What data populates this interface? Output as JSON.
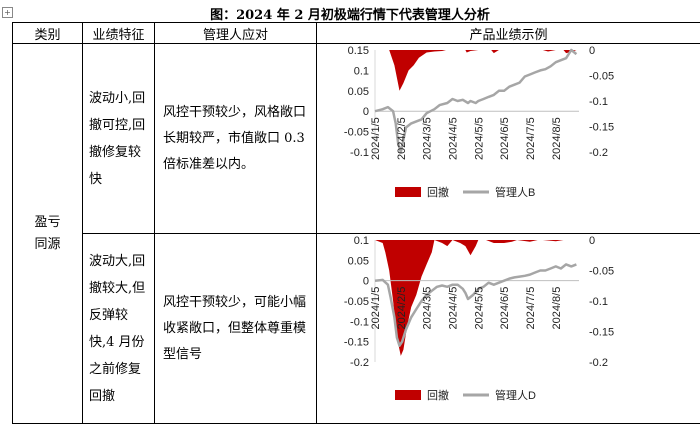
{
  "caption": "图：2024 年 2 月初极端行情下代表管理人分析",
  "headers": {
    "category": "类别",
    "feature": "业绩特征",
    "response": "管理人应对",
    "example": "产品业绩示例"
  },
  "category": "盈亏同源",
  "rows": [
    {
      "feature": "波动小,回撤可控,回撤修复较快",
      "response": "风控干预较少，风格敞口长期较严，市值敞口 0.3 倍标准差以内。"
    },
    {
      "feature": "波动大,回撤较大,但反弹较快,4 月份之前修复回撤",
      "response": "风控干预较少，可能小幅收紧敞口，但整体尊重模型信号"
    }
  ],
  "chart_data": [
    {
      "type": "area",
      "left_axis": {
        "ticks": [
          "0.15",
          "0.1",
          "0.05",
          "0",
          "-0.05",
          "-0.1"
        ],
        "ylim": [
          -0.1,
          0.15
        ]
      },
      "right_axis": {
        "ticks": [
          "0",
          "-0.05",
          "-0.1",
          "-0.15",
          "-0.2"
        ],
        "ylim": [
          -0.2,
          0
        ]
      },
      "x_ticks": [
        "2024/1/5",
        "2024/2/5",
        "2024/3/5",
        "2024/4/5",
        "2024/5/5",
        "2024/6/5",
        "2024/7/5",
        "2024/8/5"
      ],
      "x_month": [
        0,
        1,
        2,
        3,
        4,
        5,
        6,
        7
      ],
      "series": [
        {
          "name": "回撤",
          "color": "#c00000",
          "axis": "right",
          "x": [
            0.0,
            0.55,
            0.75,
            0.95,
            1.1,
            1.3,
            1.5,
            1.7,
            2.0,
            2.3,
            2.6,
            2.75,
            3.0,
            3.5,
            3.55,
            3.7,
            4.0,
            4.5,
            4.6,
            4.8,
            5.0,
            5.5,
            6.5,
            6.7,
            7.0,
            7.3,
            7.4,
            7.6,
            7.8
          ],
          "values": [
            0,
            0,
            -0.03,
            -0.08,
            -0.065,
            -0.04,
            -0.03,
            -0.015,
            -0.005,
            -0.003,
            -0.002,
            0,
            0,
            0,
            -0.005,
            -0.002,
            0,
            0,
            -0.006,
            0,
            0,
            0,
            0,
            -0.003,
            0,
            0,
            -0.006,
            -0.004,
            0
          ]
        },
        {
          "name": "管理人B",
          "color": "#a6a6a6",
          "axis": "left",
          "x": [
            0.0,
            0.3,
            0.5,
            0.7,
            0.8,
            0.9,
            1.0,
            1.1,
            1.2,
            1.4,
            1.6,
            1.8,
            2.0,
            2.3,
            2.5,
            2.8,
            3.0,
            3.2,
            3.4,
            3.6,
            3.7,
            3.9,
            4.0,
            4.2,
            4.4,
            4.6,
            4.8,
            5.0,
            5.2,
            5.4,
            5.6,
            5.8,
            6.0,
            6.2,
            6.4,
            6.6,
            6.8,
            7.0,
            7.2,
            7.4,
            7.6,
            7.8
          ],
          "values": [
            0,
            0.005,
            0.01,
            0,
            -0.03,
            -0.08,
            -0.1,
            -0.07,
            -0.04,
            -0.03,
            -0.025,
            -0.02,
            -0.005,
            0.005,
            0.015,
            0.02,
            0.03,
            0.025,
            0.028,
            0.02,
            0.025,
            0.02,
            0.025,
            0.03,
            0.035,
            0.04,
            0.05,
            0.05,
            0.06,
            0.065,
            0.07,
            0.085,
            0.09,
            0.095,
            0.1,
            0.103,
            0.11,
            0.12,
            0.125,
            0.13,
            0.15,
            0.14
          ]
        }
      ]
    },
    {
      "type": "area",
      "left_axis": {
        "ticks": [
          "0.1",
          "0.05",
          "0",
          "-0.05",
          "-0.1",
          "-0.15",
          "-0.2"
        ],
        "ylim": [
          -0.2,
          0.1
        ]
      },
      "right_axis": {
        "ticks": [
          "0",
          "-0.05",
          "-0.1",
          "-0.15",
          "-0.2"
        ],
        "ylim": [
          -0.2,
          0
        ]
      },
      "x_ticks": [
        "2024/1/5",
        "2024/2/5",
        "2024/3/5",
        "2024/4/5",
        "2024/5/5",
        "2024/6/5",
        "2024/7/5",
        "2024/8/5"
      ],
      "x_month": [
        0,
        1,
        2,
        3,
        4,
        5,
        6,
        7
      ],
      "series": [
        {
          "name": "回撤",
          "color": "#c00000",
          "axis": "right",
          "x": [
            0.0,
            0.3,
            0.4,
            0.55,
            0.7,
            0.85,
            1.0,
            1.1,
            1.25,
            1.4,
            1.6,
            1.8,
            2.0,
            2.2,
            2.3,
            2.6,
            2.8,
            3.0,
            3.3,
            3.5,
            3.7,
            3.9,
            4.0,
            4.3,
            4.6,
            5.0,
            5.3,
            5.5,
            6.0,
            6.3,
            6.5,
            7.0,
            7.3,
            7.5,
            7.8
          ],
          "values": [
            0,
            -0.005,
            -0.02,
            -0.05,
            -0.1,
            -0.16,
            -0.19,
            -0.18,
            -0.14,
            -0.11,
            -0.09,
            -0.06,
            -0.04,
            -0.02,
            0,
            -0.005,
            -0.01,
            0,
            -0.005,
            -0.01,
            -0.025,
            -0.01,
            0,
            0,
            -0.005,
            -0.005,
            -0.003,
            0,
            -0.003,
            0,
            0,
            -0.002,
            0,
            0,
            0
          ]
        },
        {
          "name": "管理人D",
          "color": "#a6a6a6",
          "axis": "left",
          "x": [
            0.0,
            0.3,
            0.5,
            0.6,
            0.75,
            0.85,
            0.95,
            1.05,
            1.2,
            1.4,
            1.6,
            1.8,
            2.0,
            2.2,
            2.4,
            2.6,
            2.8,
            3.0,
            3.2,
            3.4,
            3.5,
            3.6,
            3.8,
            4.0,
            4.2,
            4.4,
            4.6,
            4.8,
            5.0,
            5.2,
            5.4,
            5.6,
            5.8,
            6.0,
            6.2,
            6.4,
            6.6,
            6.8,
            7.0,
            7.2,
            7.4,
            7.6,
            7.8
          ],
          "values": [
            0,
            0.002,
            -0.01,
            -0.04,
            -0.09,
            -0.14,
            -0.16,
            -0.15,
            -0.12,
            -0.09,
            -0.07,
            -0.05,
            -0.035,
            -0.025,
            -0.015,
            -0.012,
            -0.015,
            -0.01,
            -0.01,
            -0.02,
            -0.03,
            -0.045,
            -0.035,
            -0.02,
            -0.015,
            -0.005,
            -0.01,
            -0.005,
            0,
            0.005,
            0.008,
            0.01,
            0.012,
            0.015,
            0.02,
            0.025,
            0.025,
            0.03,
            0.035,
            0.03,
            0.04,
            0.035,
            0.04
          ]
        }
      ]
    }
  ]
}
